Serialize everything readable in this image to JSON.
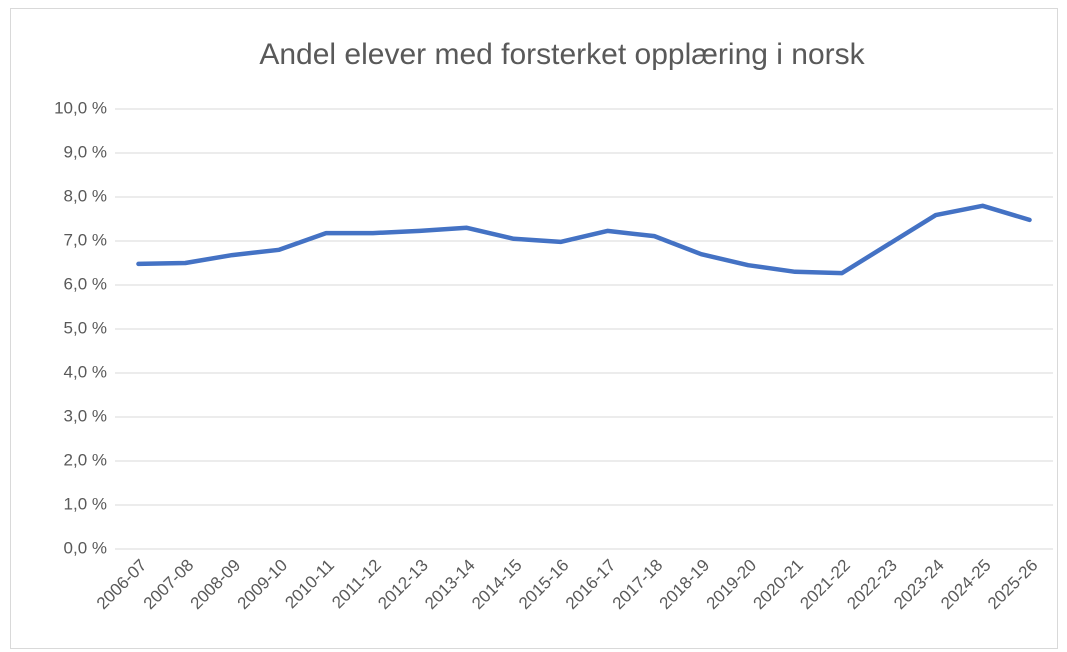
{
  "chart_data": {
    "type": "line",
    "title": "Andel elever med forsterket opplæring i norsk",
    "categories": [
      "2006-07",
      "2007-08",
      "2008-09",
      "2009-10",
      "2010-11",
      "2011-12",
      "2012-13",
      "2013-14",
      "2014-15",
      "2015-16",
      "2016-17",
      "2017-18",
      "2018-19",
      "2019-20",
      "2020-21",
      "2021-22",
      "2022-23",
      "2023-24",
      "2024-25",
      "2025-26"
    ],
    "series": [
      {
        "name": "Andel elever med forsterket opplæring i norsk",
        "color": "#4472c4",
        "values": [
          6.48,
          6.5,
          6.68,
          6.8,
          7.18,
          7.18,
          7.23,
          7.3,
          7.05,
          6.98,
          7.23,
          7.11,
          6.7,
          6.45,
          6.3,
          6.27,
          6.93,
          7.59,
          7.8,
          7.48
        ]
      }
    ],
    "ylim": [
      0,
      10
    ],
    "yticks": [
      {
        "value": 0,
        "label": "0,0 %"
      },
      {
        "value": 1,
        "label": "1,0 %"
      },
      {
        "value": 2,
        "label": "2,0 %"
      },
      {
        "value": 3,
        "label": "3,0 %"
      },
      {
        "value": 4,
        "label": "4,0 %"
      },
      {
        "value": 5,
        "label": "5,0 %"
      },
      {
        "value": 6,
        "label": "6,0 %"
      },
      {
        "value": 7,
        "label": "7,0 %"
      },
      {
        "value": 8,
        "label": "8,0 %"
      },
      {
        "value": 9,
        "label": "9,0 %"
      },
      {
        "value": 10,
        "label": "10,0 %"
      }
    ],
    "grid": true
  }
}
